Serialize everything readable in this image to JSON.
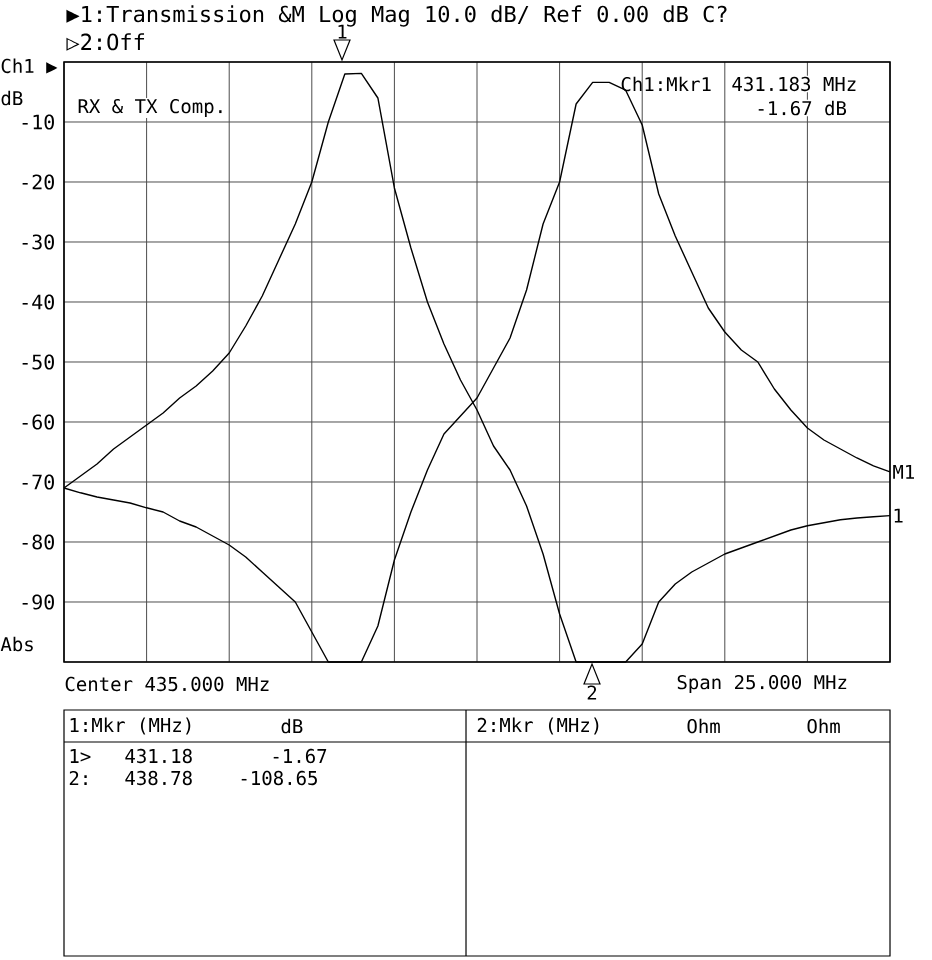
{
  "chart_data": {
    "type": "line",
    "title": "▶1:Transmission &M Log Mag 10.0 dB/ Ref 0.00 dB C?",
    "subtitle": "▷2:Off",
    "ylabel": "dB",
    "categories": [
      null,
      null,
      null,
      null,
      null,
      null,
      null,
      null,
      null,
      null,
      null,
      null,
      null,
      null,
      null,
      null,
      null,
      null,
      null,
      null,
      null,
      null,
      null,
      null,
      null,
      null,
      null,
      null,
      null,
      null,
      null,
      null,
      null,
      null,
      null,
      null,
      null,
      null,
      null,
      null,
      null,
      null,
      null,
      null,
      null,
      null,
      null,
      null,
      null,
      null,
      null
    ],
    "ylim": [
      -100,
      0
    ],
    "yticks": [
      {
        "value": 0,
        "label": null
      },
      -10,
      -20,
      -30,
      -40,
      -50,
      -60,
      -70,
      -80,
      -90,
      {
        "value": -100,
        "label": null
      }
    ],
    "tick_labels": "y",
    "grid": true,
    "marker": "none",
    "line_style": "solid",
    "series": [
      {
        "name": "1",
        "color": "#000000",
        "values": [
          -71,
          -69,
          -67,
          -64.5,
          -62.5,
          -60.5,
          -58.5,
          -56,
          -54,
          -51.5,
          -48.5,
          -44,
          -39,
          -33,
          -27,
          -20,
          -10,
          -2,
          -1.9,
          -6,
          -21,
          -31,
          -40,
          -47,
          -53,
          -58,
          -64,
          -68,
          -74,
          -82,
          -92,
          -100,
          -100,
          -100,
          -100,
          -97,
          -90,
          -87,
          -85,
          -83.5,
          -82,
          -81,
          -80,
          -79,
          -78,
          -77.3,
          -76.8,
          -76.3,
          -76,
          -75.8,
          -75.6
        ]
      },
      {
        "name": "M1",
        "color": "#000000",
        "values": [
          -71,
          -71.8,
          -72.5,
          -73,
          -73.5,
          -74.3,
          -75,
          -76.5,
          -77.5,
          -79,
          -80.5,
          -82.5,
          -85,
          -87.5,
          -90,
          -95,
          -100,
          -100,
          -100,
          -94,
          -83,
          -75,
          -68,
          -62,
          -59,
          -56,
          -51,
          -46,
          -38,
          -27,
          -20,
          -7,
          -3.4,
          -3.4,
          -4.7,
          -10.5,
          -22,
          -29,
          -35,
          -41,
          -45,
          -48,
          -50,
          -54.5,
          -58,
          -61,
          -63,
          -64.5,
          -66,
          -67.3,
          -68.3
        ]
      }
    ],
    "annotations": [
      "Ch1 ▶",
      "Abs",
      "RX & TX Comp.",
      "Ch1:Mkr1",
      "431.183 MHz",
      "-1.67 dB",
      "Center 435.000 MHz",
      "Span 25.000 MHz",
      "1:Mkr (MHz)",
      "dB",
      "2:Mkr (MHz)",
      "Ohm",
      "Ohm",
      "1>",
      "431.18",
      "-1.67",
      "2:",
      "438.78",
      "-108.65",
      "1",
      "2"
    ]
  }
}
